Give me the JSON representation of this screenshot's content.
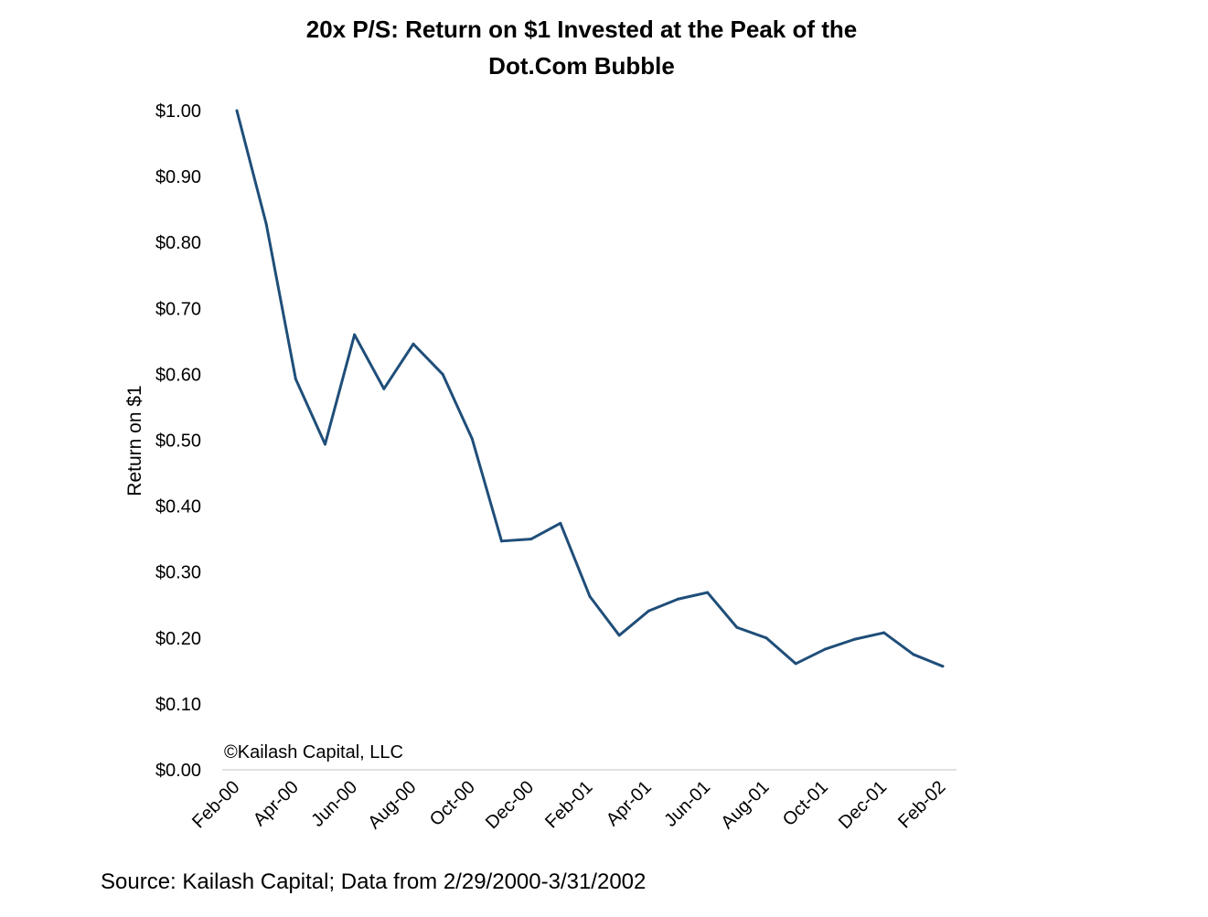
{
  "chart_data": {
    "type": "line",
    "title": "20x P/S: Return on $1 Invested at the Peak of the Dot.Com Bubble",
    "title_lines": [
      "20x P/S: Return on $1 Invested at the Peak of the",
      "Dot.Com Bubble"
    ],
    "xlabel": "",
    "ylabel": "Return on $1",
    "ylim": [
      0,
      1.0
    ],
    "yticks": [
      "$0.00",
      "$0.10",
      "$0.20",
      "$0.30",
      "$0.40",
      "$0.50",
      "$0.60",
      "$0.70",
      "$0.80",
      "$0.90",
      "$1.00"
    ],
    "x": [
      "Feb-00",
      "Mar-00",
      "Apr-00",
      "May-00",
      "Jun-00",
      "Jul-00",
      "Aug-00",
      "Sep-00",
      "Oct-00",
      "Nov-00",
      "Dec-00",
      "Jan-01",
      "Feb-01",
      "Mar-01",
      "Apr-01",
      "May-01",
      "Jun-01",
      "Jul-01",
      "Aug-01",
      "Sep-01",
      "Oct-01",
      "Nov-01",
      "Dec-01",
      "Jan-02",
      "Feb-02"
    ],
    "xtick_labels": [
      "Feb-00",
      "Apr-00",
      "Jun-00",
      "Aug-00",
      "Oct-00",
      "Dec-00",
      "Feb-01",
      "Apr-01",
      "Jun-01",
      "Aug-01",
      "Oct-01",
      "Dec-01",
      "Feb-02"
    ],
    "series": [
      {
        "values": [
          1.0,
          0.828,
          0.593,
          0.494,
          0.66,
          0.578,
          0.646,
          0.6,
          0.502,
          0.347,
          0.35,
          0.374,
          0.263,
          0.204,
          0.241,
          0.259,
          0.269,
          0.216,
          0.2,
          0.161,
          0.183,
          0.198,
          0.208,
          0.175,
          0.157
        ],
        "color": "#1f4e79"
      }
    ],
    "grid": false,
    "legend": "none",
    "annotation": "©Kailash Capital, LLC"
  },
  "source": "Source: Kailash Capital; Data from 2/29/2000-3/31/2002"
}
